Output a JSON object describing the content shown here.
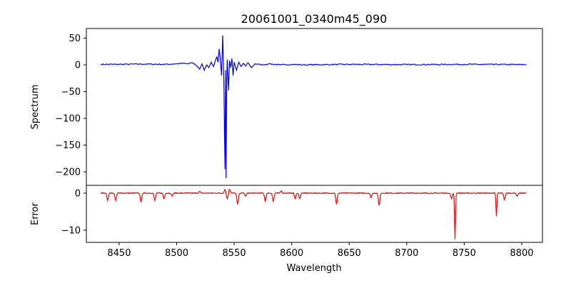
{
  "chart_data": [
    {
      "type": "line",
      "title": "20061001_0340m45_090",
      "xlabel": "",
      "ylabel": "Spectrum",
      "xlim": [
        8421.5,
        8818
      ],
      "ylim": [
        -225.3,
        68
      ],
      "yticks": [
        50,
        0,
        -50,
        -100,
        -150,
        -200
      ],
      "ytick_labels": [
        "50",
        "0",
        "−50",
        "−100",
        "−150",
        "−200"
      ],
      "color": "#0000ff",
      "series": [
        {
          "name": "Spectrum",
          "points": [
            [
              8434,
              1
            ],
            [
              8450,
              1
            ],
            [
              8470,
              1.5
            ],
            [
              8490,
              1
            ],
            [
              8500,
              2
            ],
            [
              8505,
              3
            ],
            [
              8510,
              2
            ],
            [
              8513,
              4
            ],
            [
              8516,
              1
            ],
            [
              8518,
              -3
            ],
            [
              8520,
              -8
            ],
            [
              8522,
              2
            ],
            [
              8524,
              -10
            ],
            [
              8526,
              0
            ],
            [
              8528,
              -5
            ],
            [
              8530,
              5
            ],
            [
              8532,
              -3
            ],
            [
              8534,
              10
            ],
            [
              8535,
              15
            ],
            [
              8536,
              5
            ],
            [
              8537,
              30
            ],
            [
              8538,
              8
            ],
            [
              8539,
              -20
            ],
            [
              8540,
              55
            ],
            [
              8541,
              -28
            ],
            [
              8542,
              -195
            ],
            [
              8542.5,
              -10
            ],
            [
              8543,
              -212
            ],
            [
              8543.5,
              -30
            ],
            [
              8544,
              10
            ],
            [
              8545,
              -48
            ],
            [
              8546,
              8
            ],
            [
              8547,
              -5
            ],
            [
              8548,
              12
            ],
            [
              8549,
              -20
            ],
            [
              8550,
              5
            ],
            [
              8552,
              -10
            ],
            [
              8554,
              5
            ],
            [
              8556,
              -3
            ],
            [
              8558,
              3
            ],
            [
              8560,
              -2
            ],
            [
              8562,
              4
            ],
            [
              8565,
              -5
            ],
            [
              8568,
              2
            ],
            [
              8575,
              0
            ],
            [
              8580,
              2
            ],
            [
              8590,
              0
            ],
            [
              8600,
              1
            ],
            [
              8610,
              0
            ],
            [
              8650,
              1
            ],
            [
              8700,
              0.5
            ],
            [
              8750,
              1
            ],
            [
              8804,
              0.5
            ]
          ]
        }
      ]
    },
    {
      "type": "line",
      "xlabel": "Wavelength",
      "ylabel": "Error",
      "xlim": [
        8421.5,
        8818
      ],
      "ylim": [
        -13.3,
        2.1
      ],
      "xticks": [
        8450,
        8500,
        8550,
        8600,
        8650,
        8700,
        8750,
        8800
      ],
      "xtick_labels": [
        "8450",
        "8500",
        "8550",
        "8600",
        "8650",
        "8700",
        "8750",
        "8800"
      ],
      "yticks": [
        0,
        -10
      ],
      "ytick_labels": [
        "0",
        "−10"
      ],
      "color": "#ff0000",
      "series": [
        {
          "name": "Error",
          "dips": [
            [
              8440,
              -2
            ],
            [
              8447,
              -2
            ],
            [
              8469,
              -2.3
            ],
            [
              8481,
              -2
            ],
            [
              8489,
              -1.5
            ],
            [
              8496,
              -0.8
            ],
            [
              8520,
              0.5
            ],
            [
              8542,
              1
            ],
            [
              8544,
              -1.5
            ],
            [
              8546,
              1
            ],
            [
              8553,
              -3
            ],
            [
              8560,
              -0.8
            ],
            [
              8577,
              -2.2
            ],
            [
              8584,
              -2.2
            ],
            [
              8591,
              0.6
            ],
            [
              8603,
              -1.5
            ],
            [
              8607,
              -1.5
            ],
            [
              8639,
              -3
            ],
            [
              8669,
              -1.2
            ],
            [
              8676,
              -3.3
            ],
            [
              8739,
              -1.5
            ],
            [
              8742,
              -12.5
            ],
            [
              8778,
              -6.3
            ],
            [
              8785,
              -1.8
            ],
            [
              8796,
              -0.8
            ]
          ],
          "range": [
            8434,
            8804
          ]
        }
      ]
    }
  ]
}
